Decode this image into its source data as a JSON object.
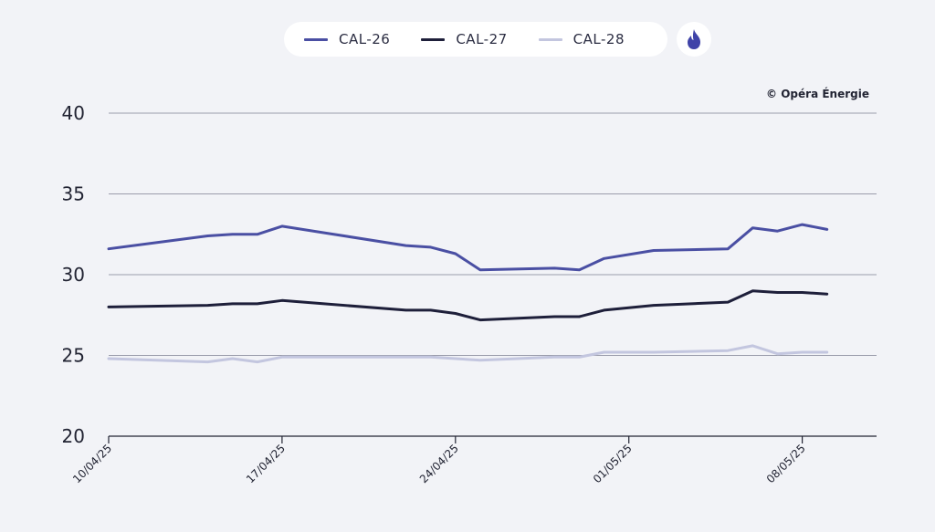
{
  "legend": {
    "items": [
      {
        "label": "CAL-26",
        "color": "#4a4fa3"
      },
      {
        "label": "CAL-27",
        "color": "#1e1f3a"
      },
      {
        "label": "CAL-28",
        "color": "#c3c6df"
      }
    ],
    "energy_icon": "flame-icon"
  },
  "copyright": "© Opéra Énergie",
  "chart_data": {
    "type": "line",
    "ylim": [
      20,
      40
    ],
    "yticks": [
      20,
      25,
      30,
      35,
      40
    ],
    "xlim": [
      "2025-04-10",
      "2025-05-11"
    ],
    "xticks": [
      "2025-04-10",
      "2025-04-17",
      "2025-04-24",
      "2025-05-01",
      "2025-05-08"
    ],
    "xtick_labels": [
      "10/04/25",
      "17/04/25",
      "24/04/25",
      "01/05/25",
      "08/05/25"
    ],
    "x": [
      "2025-04-10",
      "2025-04-14",
      "2025-04-15",
      "2025-04-16",
      "2025-04-17",
      "2025-04-22",
      "2025-04-23",
      "2025-04-24",
      "2025-04-25",
      "2025-04-28",
      "2025-04-29",
      "2025-04-30",
      "2025-05-02",
      "2025-05-05",
      "2025-05-06",
      "2025-05-07",
      "2025-05-08",
      "2025-05-09"
    ],
    "series": [
      {
        "name": "CAL-26",
        "color": "#4a4fa3",
        "values": [
          31.6,
          32.4,
          32.5,
          32.5,
          33.0,
          31.8,
          31.7,
          31.3,
          30.3,
          30.4,
          30.3,
          31.0,
          31.5,
          31.6,
          32.9,
          32.7,
          33.1,
          32.8
        ]
      },
      {
        "name": "CAL-27",
        "color": "#1e1f3a",
        "values": [
          28.0,
          28.1,
          28.2,
          28.2,
          28.4,
          27.8,
          27.8,
          27.6,
          27.2,
          27.4,
          27.4,
          27.8,
          28.1,
          28.3,
          29.0,
          28.9,
          28.9,
          28.8
        ]
      },
      {
        "name": "CAL-28",
        "color": "#c3c6df",
        "values": [
          24.8,
          24.6,
          24.8,
          24.6,
          24.9,
          24.9,
          24.9,
          24.8,
          24.7,
          24.9,
          24.9,
          25.2,
          25.2,
          25.3,
          25.6,
          25.1,
          25.2,
          25.2
        ]
      }
    ],
    "grid": true,
    "legend_position": "top-center"
  }
}
